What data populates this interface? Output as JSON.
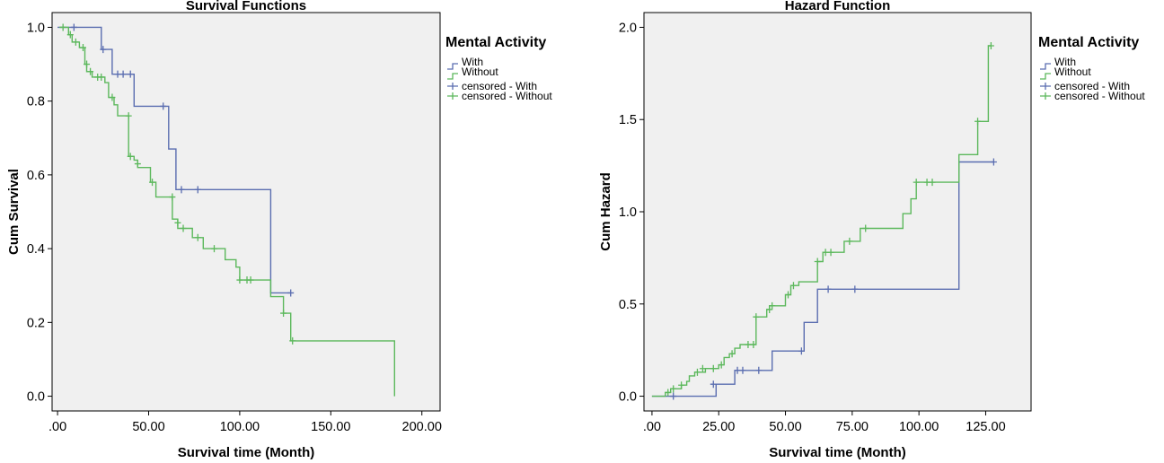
{
  "chart_data": [
    {
      "type": "line",
      "title": "Survival Functions",
      "xlabel": "Survival time (Month)",
      "ylabel": "Cum Survival",
      "xlim": [
        -3,
        210
      ],
      "ylim": [
        -0.04,
        1.04
      ],
      "xticks": [
        0,
        50,
        100,
        150,
        200
      ],
      "xtick_labels": [
        ".00",
        "50.00",
        "100.00",
        "150.00",
        "200.00"
      ],
      "yticks": [
        0,
        0.2,
        0.4,
        0.6,
        0.8,
        1.0
      ],
      "ytick_labels": [
        "0.0",
        "0.2",
        "0.4",
        "0.6",
        "0.8",
        "1.0"
      ],
      "legend": {
        "title": "Mental Activity",
        "position": "right",
        "entries": [
          "With",
          "Without",
          "censored - With",
          "censored - Without"
        ]
      },
      "series": [
        {
          "name": "With",
          "color": "#5a6db0",
          "steps": [
            [
              0,
              1.0
            ],
            [
              24,
              1.0
            ],
            [
              24,
              0.94
            ],
            [
              30,
              0.94
            ],
            [
              30,
              0.873
            ],
            [
              42,
              0.873
            ],
            [
              42,
              0.786
            ],
            [
              57,
              0.786
            ],
            [
              57,
              0.786
            ],
            [
              61,
              0.786
            ],
            [
              61,
              0.67
            ],
            [
              65,
              0.67
            ],
            [
              65,
              0.56
            ],
            [
              117,
              0.56
            ],
            [
              117,
              0.28
            ],
            [
              128,
              0.28
            ]
          ],
          "censored": [
            [
              9,
              1.0
            ],
            [
              25,
              0.94
            ],
            [
              33,
              0.873
            ],
            [
              36,
              0.873
            ],
            [
              40,
              0.873
            ],
            [
              58,
              0.786
            ],
            [
              68,
              0.56
            ],
            [
              77,
              0.56
            ],
            [
              128,
              0.28
            ]
          ]
        },
        {
          "name": "Without",
          "color": "#5cb85c",
          "steps": [
            [
              1,
              1.0
            ],
            [
              6,
              1.0
            ],
            [
              6,
              0.98
            ],
            [
              8,
              0.98
            ],
            [
              8,
              0.96
            ],
            [
              12,
              0.96
            ],
            [
              12,
              0.945
            ],
            [
              15,
              0.945
            ],
            [
              15,
              0.9
            ],
            [
              16,
              0.9
            ],
            [
              16,
              0.88
            ],
            [
              19,
              0.88
            ],
            [
              19,
              0.865
            ],
            [
              26,
              0.865
            ],
            [
              26,
              0.85
            ],
            [
              28,
              0.85
            ],
            [
              28,
              0.81
            ],
            [
              31,
              0.81
            ],
            [
              31,
              0.79
            ],
            [
              33,
              0.79
            ],
            [
              33,
              0.76
            ],
            [
              39,
              0.76
            ],
            [
              39,
              0.65
            ],
            [
              42,
              0.65
            ],
            [
              42,
              0.64
            ],
            [
              44,
              0.64
            ],
            [
              44,
              0.62
            ],
            [
              51,
              0.62
            ],
            [
              51,
              0.58
            ],
            [
              54,
              0.58
            ],
            [
              54,
              0.54
            ],
            [
              63,
              0.54
            ],
            [
              63,
              0.48
            ],
            [
              66,
              0.48
            ],
            [
              66,
              0.455
            ],
            [
              74,
              0.455
            ],
            [
              74,
              0.43
            ],
            [
              80,
              0.43
            ],
            [
              80,
              0.4
            ],
            [
              92,
              0.4
            ],
            [
              92,
              0.37
            ],
            [
              98,
              0.37
            ],
            [
              98,
              0.35
            ],
            [
              100,
              0.35
            ],
            [
              100,
              0.315
            ],
            [
              117,
              0.315
            ],
            [
              117,
              0.27
            ],
            [
              124,
              0.27
            ],
            [
              124,
              0.225
            ],
            [
              128,
              0.225
            ],
            [
              128,
              0.15
            ],
            [
              185,
              0.15
            ],
            [
              185,
              0.0
            ]
          ],
          "censored": [
            [
              3,
              1.0
            ],
            [
              7,
              0.98
            ],
            [
              10,
              0.96
            ],
            [
              14,
              0.945
            ],
            [
              16,
              0.9
            ],
            [
              18,
              0.88
            ],
            [
              22,
              0.865
            ],
            [
              24,
              0.865
            ],
            [
              30,
              0.81
            ],
            [
              39,
              0.76
            ],
            [
              40,
              0.65
            ],
            [
              44,
              0.63
            ],
            [
              52,
              0.58
            ],
            [
              63,
              0.54
            ],
            [
              66,
              0.47
            ],
            [
              69,
              0.455
            ],
            [
              77,
              0.43
            ],
            [
              86,
              0.4
            ],
            [
              100,
              0.315
            ],
            [
              104,
              0.315
            ],
            [
              106,
              0.315
            ],
            [
              124,
              0.225
            ],
            [
              129,
              0.15
            ]
          ]
        }
      ]
    },
    {
      "type": "line",
      "title": "Hazard Function",
      "xlabel": "Survival time (Month)",
      "ylabel": "Cum Hazard",
      "xlim": [
        -3,
        142
      ],
      "ylim": [
        -0.08,
        2.08
      ],
      "xticks": [
        0,
        25,
        50,
        75,
        100,
        125
      ],
      "xtick_labels": [
        ".00",
        "25.00",
        "50.00",
        "75.00",
        "100.00",
        "125.00"
      ],
      "yticks": [
        0,
        0.5,
        1.0,
        1.5,
        2.0
      ],
      "ytick_labels": [
        "0.0",
        "0.5",
        "1.0",
        "1.5",
        "2.0"
      ],
      "legend": {
        "title": "Mental Activity",
        "position": "right",
        "entries": [
          "With",
          "Without",
          "censored - With",
          "censored - Without"
        ]
      },
      "series": [
        {
          "name": "With",
          "color": "#5a6db0",
          "steps": [
            [
              0,
              0
            ],
            [
              24,
              0
            ],
            [
              24,
              0.065
            ],
            [
              31,
              0.065
            ],
            [
              31,
              0.14
            ],
            [
              45,
              0.14
            ],
            [
              45,
              0.245
            ],
            [
              57,
              0.245
            ],
            [
              57,
              0.4
            ],
            [
              62,
              0.4
            ],
            [
              62,
              0.58
            ],
            [
              115,
              0.58
            ],
            [
              115,
              1.27
            ],
            [
              128,
              1.27
            ]
          ],
          "censored": [
            [
              8,
              0
            ],
            [
              23,
              0.065
            ],
            [
              32,
              0.14
            ],
            [
              34,
              0.14
            ],
            [
              40,
              0.14
            ],
            [
              56,
              0.245
            ],
            [
              66,
              0.58
            ],
            [
              76,
              0.58
            ],
            [
              128,
              1.27
            ]
          ]
        },
        {
          "name": "Without",
          "color": "#5cb85c",
          "steps": [
            [
              0,
              0
            ],
            [
              5,
              0
            ],
            [
              5,
              0.02
            ],
            [
              7,
              0.02
            ],
            [
              7,
              0.04
            ],
            [
              11,
              0.04
            ],
            [
              11,
              0.06
            ],
            [
              13,
              0.06
            ],
            [
              13,
              0.08
            ],
            [
              14,
              0.08
            ],
            [
              14,
              0.11
            ],
            [
              16,
              0.11
            ],
            [
              16,
              0.13
            ],
            [
              20,
              0.13
            ],
            [
              20,
              0.15
            ],
            [
              25,
              0.15
            ],
            [
              25,
              0.17
            ],
            [
              27,
              0.17
            ],
            [
              27,
              0.21
            ],
            [
              29,
              0.21
            ],
            [
              29,
              0.23
            ],
            [
              31,
              0.23
            ],
            [
              31,
              0.26
            ],
            [
              33,
              0.26
            ],
            [
              33,
              0.28
            ],
            [
              39,
              0.28
            ],
            [
              39,
              0.43
            ],
            [
              43,
              0.43
            ],
            [
              43,
              0.47
            ],
            [
              44,
              0.47
            ],
            [
              44,
              0.49
            ],
            [
              50,
              0.49
            ],
            [
              50,
              0.55
            ],
            [
              52,
              0.55
            ],
            [
              52,
              0.6
            ],
            [
              55,
              0.6
            ],
            [
              55,
              0.62
            ],
            [
              62,
              0.62
            ],
            [
              62,
              0.73
            ],
            [
              64,
              0.73
            ],
            [
              64,
              0.78
            ],
            [
              72,
              0.78
            ],
            [
              72,
              0.84
            ],
            [
              78,
              0.84
            ],
            [
              78,
              0.91
            ],
            [
              94,
              0.91
            ],
            [
              94,
              0.99
            ],
            [
              97,
              0.99
            ],
            [
              97,
              1.07
            ],
            [
              99,
              1.07
            ],
            [
              99,
              1.16
            ],
            [
              115,
              1.16
            ],
            [
              115,
              1.31
            ],
            [
              122,
              1.31
            ],
            [
              122,
              1.49
            ],
            [
              126,
              1.49
            ],
            [
              126,
              1.9
            ],
            [
              127,
              1.9
            ]
          ],
          "censored": [
            [
              6,
              0.02
            ],
            [
              8,
              0.04
            ],
            [
              11,
              0.06
            ],
            [
              17,
              0.13
            ],
            [
              19,
              0.15
            ],
            [
              23,
              0.15
            ],
            [
              26,
              0.17
            ],
            [
              30,
              0.23
            ],
            [
              36,
              0.28
            ],
            [
              38,
              0.28
            ],
            [
              39,
              0.43
            ],
            [
              44,
              0.47
            ],
            [
              45,
              0.49
            ],
            [
              51,
              0.55
            ],
            [
              53,
              0.6
            ],
            [
              62,
              0.73
            ],
            [
              65,
              0.78
            ],
            [
              67,
              0.78
            ],
            [
              74,
              0.84
            ],
            [
              80,
              0.91
            ],
            [
              99,
              1.16
            ],
            [
              103,
              1.16
            ],
            [
              105,
              1.16
            ],
            [
              122,
              1.49
            ],
            [
              127,
              1.9
            ]
          ]
        }
      ]
    }
  ]
}
